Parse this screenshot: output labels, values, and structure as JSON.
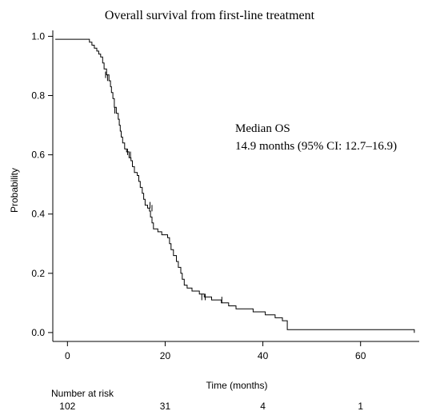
{
  "chart_data": {
    "type": "line",
    "subtype": "kaplan-meier",
    "title": "Overall survival from first-line treatment",
    "xlabel": "Time (months)",
    "ylabel": "Probability",
    "xlim": [
      -3,
      72
    ],
    "ylim": [
      -0.03,
      1.02
    ],
    "x_ticks": [
      0,
      20,
      40,
      60
    ],
    "y_ticks": [
      0.0,
      0.2,
      0.4,
      0.6,
      0.8,
      1.0
    ],
    "y_tick_labels": [
      "0.0",
      "0.2",
      "0.4",
      "0.6",
      "0.8",
      "1.0"
    ],
    "grid": false,
    "annotation": {
      "line1": "Median OS",
      "line2": "14.9 months (95% CI: 12.7–16.9)"
    },
    "series": [
      {
        "step_points": [
          [
            -2.5,
            0.99
          ],
          [
            4.5,
            0.98
          ],
          [
            5.0,
            0.97
          ],
          [
            5.5,
            0.96
          ],
          [
            6.0,
            0.95
          ],
          [
            6.4,
            0.94
          ],
          [
            6.8,
            0.93
          ],
          [
            7.2,
            0.91
          ],
          [
            7.5,
            0.89
          ],
          [
            8.0,
            0.87
          ],
          [
            8.5,
            0.85
          ],
          [
            8.8,
            0.83
          ],
          [
            9.0,
            0.81
          ],
          [
            9.3,
            0.79
          ],
          [
            9.6,
            0.76
          ],
          [
            10.0,
            0.74
          ],
          [
            10.4,
            0.72
          ],
          [
            10.6,
            0.7
          ],
          [
            10.8,
            0.68
          ],
          [
            11.0,
            0.66
          ],
          [
            11.3,
            0.64
          ],
          [
            11.7,
            0.62
          ],
          [
            12.1,
            0.61
          ],
          [
            12.6,
            0.59
          ],
          [
            13.0,
            0.58
          ],
          [
            13.3,
            0.56
          ],
          [
            13.7,
            0.54
          ],
          [
            14.3,
            0.53
          ],
          [
            14.6,
            0.51
          ],
          [
            14.9,
            0.49
          ],
          [
            15.3,
            0.47
          ],
          [
            15.6,
            0.45
          ],
          [
            15.9,
            0.43
          ],
          [
            16.4,
            0.42
          ],
          [
            16.8,
            0.41
          ],
          [
            17.0,
            0.39
          ],
          [
            17.3,
            0.37
          ],
          [
            17.6,
            0.35
          ],
          [
            18.5,
            0.34
          ],
          [
            19.3,
            0.33
          ],
          [
            20.5,
            0.32
          ],
          [
            20.9,
            0.3
          ],
          [
            21.2,
            0.28
          ],
          [
            21.7,
            0.26
          ],
          [
            22.3,
            0.24
          ],
          [
            22.7,
            0.22
          ],
          [
            23.2,
            0.2
          ],
          [
            23.5,
            0.18
          ],
          [
            23.9,
            0.16
          ],
          [
            24.5,
            0.15
          ],
          [
            25.5,
            0.14
          ],
          [
            27.0,
            0.13
          ],
          [
            28.0,
            0.12
          ],
          [
            29.5,
            0.11
          ],
          [
            31.5,
            0.1
          ],
          [
            33.0,
            0.09
          ],
          [
            34.5,
            0.08
          ],
          [
            38.0,
            0.07
          ],
          [
            40.5,
            0.06
          ],
          [
            42.5,
            0.05
          ],
          [
            44.0,
            0.04
          ],
          [
            45.0,
            0.01
          ],
          [
            71.0,
            0.01
          ]
        ],
        "end_x": 71.0,
        "censor_marks": [
          [
            7.8,
            0.87
          ],
          [
            8.2,
            0.86
          ],
          [
            9.7,
            0.75
          ],
          [
            12.3,
            0.61
          ],
          [
            12.9,
            0.6
          ],
          [
            16.9,
            0.43
          ],
          [
            17.3,
            0.42
          ],
          [
            27.5,
            0.12
          ],
          [
            28.2,
            0.12
          ],
          [
            31.6,
            0.11
          ]
        ]
      }
    ],
    "risk_table": {
      "label": "Number at risk",
      "times": [
        0,
        20,
        40,
        60
      ],
      "counts": [
        "102",
        "31",
        "4",
        "1"
      ]
    }
  }
}
